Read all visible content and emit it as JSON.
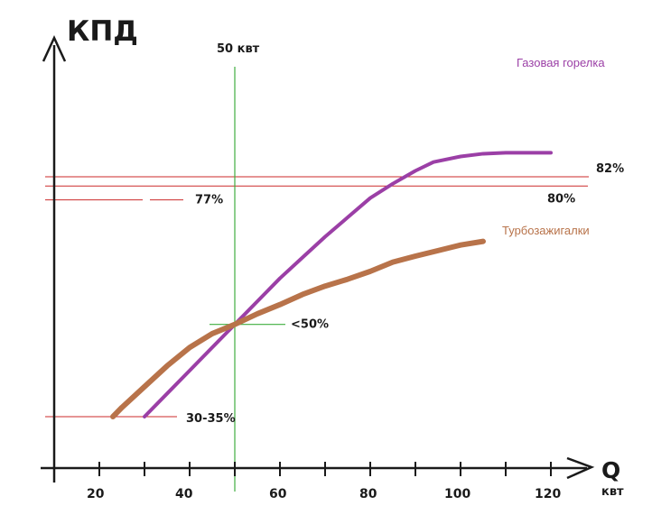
{
  "chart_data": {
    "type": "line",
    "title": "",
    "ylabel": "КПД",
    "xlabel": "Q",
    "xunit": "квт",
    "xlim": [
      10,
      125
    ],
    "ylim": [
      22,
      88
    ],
    "x_ticks": [
      20,
      30,
      40,
      50,
      60,
      70,
      80,
      90,
      100,
      110,
      120
    ],
    "x_tick_labels": [
      {
        "x": 20,
        "label": "20"
      },
      {
        "x": 40,
        "label": "40"
      },
      {
        "x": 60,
        "label": "60"
      },
      {
        "x": 80,
        "label": "80"
      },
      {
        "x": 100,
        "label": "100"
      },
      {
        "x": 120,
        "label": "120"
      }
    ],
    "vertical_marker": {
      "x": 50,
      "label": "50 квт"
    },
    "reference_lines": [
      {
        "y": 82,
        "label": "82%",
        "x_from": 10,
        "x_to": 118
      },
      {
        "y": 80,
        "label": "80%",
        "x_from": 10,
        "x_to": 128
      },
      {
        "y": 77,
        "label": "77%",
        "x_from": 10,
        "x_to": 38,
        "dashed": true
      },
      {
        "y": 50,
        "label": "<50%",
        "x_from": 45,
        "x_to": 62
      },
      {
        "y": 30,
        "label": "30-35%",
        "x_from": 10,
        "x_to": 39
      }
    ],
    "series": [
      {
        "name": "Газовая горелка",
        "color": "#9b3fa6",
        "points": [
          [
            30,
            30
          ],
          [
            35,
            35
          ],
          [
            40,
            40
          ],
          [
            45,
            45
          ],
          [
            50,
            50
          ],
          [
            55,
            55
          ],
          [
            60,
            60
          ],
          [
            65,
            64.5
          ],
          [
            70,
            69
          ],
          [
            75,
            73.2
          ],
          [
            80,
            77.4
          ],
          [
            85,
            80.5
          ],
          [
            90,
            83.3
          ],
          [
            94,
            85.2
          ],
          [
            100,
            86.4
          ],
          [
            105,
            87
          ],
          [
            110,
            87.2
          ],
          [
            120,
            87.2
          ]
        ]
      },
      {
        "name": "Турбозажигалки",
        "color": "#b8734a",
        "points": [
          [
            23,
            30
          ],
          [
            25,
            32
          ],
          [
            30,
            36.5
          ],
          [
            35,
            41
          ],
          [
            40,
            45
          ],
          [
            45,
            48
          ],
          [
            50,
            50
          ],
          [
            55,
            52.3
          ],
          [
            60,
            54.3
          ],
          [
            65,
            56.5
          ],
          [
            70,
            58.3
          ],
          [
            75,
            59.8
          ],
          [
            80,
            61.5
          ],
          [
            85,
            63.5
          ],
          [
            90,
            64.8
          ],
          [
            95,
            66
          ],
          [
            100,
            67.2
          ],
          [
            105,
            68
          ]
        ]
      }
    ]
  }
}
